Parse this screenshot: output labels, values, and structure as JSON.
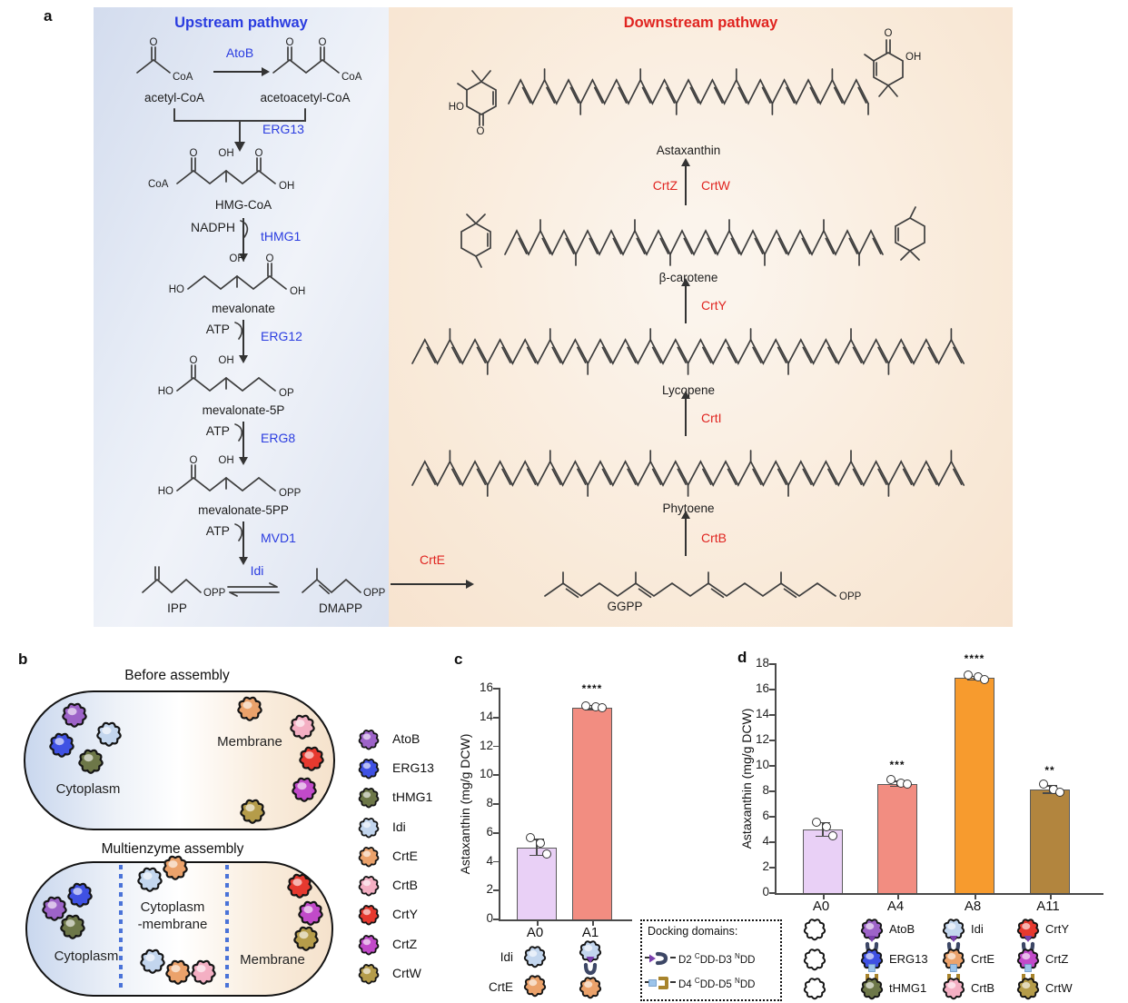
{
  "panels": {
    "a": "a",
    "b": "b",
    "c": "c",
    "d": "d"
  },
  "chem": {
    "o": "O",
    "oh": "OH",
    "ho": "HO",
    "coa": "CoA",
    "op": "OP",
    "opp": "OPP"
  },
  "upstream": {
    "title": "Upstream pathway",
    "steps": {
      "atob": "AtoB",
      "erg13": "ERG13",
      "thmg1": "tHMG1",
      "erg12": "ERG12",
      "erg8": "ERG8",
      "mvd1": "MVD1",
      "idi": "Idi"
    },
    "cofactors": {
      "nadph": "NADPH",
      "atp1": "ATP",
      "atp2": "ATP",
      "atp3": "ATP"
    },
    "mets": {
      "acetyl": "acetyl-CoA",
      "acetoacetyl": "acetoacetyl-CoA",
      "hmg": "HMG-CoA",
      "mev": "mevalonate",
      "mev5p": "mevalonate-5P",
      "mev5pp": "mevalonate-5PP",
      "ipp": "IPP",
      "dmapp": "DMAPP"
    }
  },
  "downstream": {
    "title": "Downstream pathway",
    "steps": {
      "crte": "CrtE",
      "crtb": "CrtB",
      "crti": "CrtI",
      "crty": "CrtY",
      "crtz": "CrtZ",
      "crtw": "CrtW"
    },
    "mets": {
      "ggpp": "GGPP",
      "phytoene": "Phytoene",
      "lycopene": "Lycopene",
      "bcar": "β-carotene",
      "asta": "Astaxanthin"
    }
  },
  "assembly": {
    "before_title": "Before assembly",
    "multi_title": "Multienzyme assembly",
    "cytoplasm": "Cytoplasm",
    "membrane": "Membrane",
    "cyto_mem1": "Cytoplasm",
    "cyto_mem2": "-membrane"
  },
  "enzymes": [
    {
      "name": "AtoB",
      "color": "#9d63c8"
    },
    {
      "name": "ERG13",
      "color": "#3f51e3"
    },
    {
      "name": "tHMG1",
      "color": "#6d7748"
    },
    {
      "name": "Idi",
      "color": "#c3d6ee"
    },
    {
      "name": "CrtE",
      "color": "#eba26b"
    },
    {
      "name": "CrtB",
      "color": "#f4afc3"
    },
    {
      "name": "CrtY",
      "color": "#e6392f"
    },
    {
      "name": "CrtZ",
      "color": "#c14ac9"
    },
    {
      "name": "CrtW",
      "color": "#b59c4a"
    }
  ],
  "docking": {
    "title": "Docking domains:",
    "row1": {
      "pre": "D2 ",
      "sup1": "C",
      "mid": "DD-D3 ",
      "sup2": "N",
      "post": "DD"
    },
    "row2": {
      "pre": "D4 ",
      "sup1": "C",
      "mid": "DD-D5 ",
      "sup2": "N",
      "post": "DD"
    }
  },
  "chart_data": [
    {
      "id": "c",
      "type": "bar",
      "title": "",
      "xlabel": "",
      "ylabel": "Astaxanthin (mg/g DCW)",
      "ylim": [
        0,
        16
      ],
      "ytick_step": 2,
      "grid": false,
      "categories": [
        "A0",
        "A1"
      ],
      "values": [
        5.0,
        14.7
      ],
      "bar_colors": [
        "#e9d0f6",
        "#f28d81"
      ],
      "significance": [
        "",
        "****"
      ],
      "points": [
        [
          5.6,
          5.2,
          4.45
        ],
        [
          14.75,
          14.7,
          14.6
        ]
      ],
      "errors": [
        0.6,
        0.18
      ],
      "icon_rows": [
        "Idi",
        "CrtE"
      ]
    },
    {
      "id": "d",
      "type": "bar",
      "title": "",
      "xlabel": "",
      "ylabel": "Astaxanthin (mg/g DCW)",
      "ylim": [
        0,
        18
      ],
      "ytick_step": 2,
      "grid": false,
      "categories": [
        "A0",
        "A4",
        "A8",
        "A11"
      ],
      "values": [
        5.0,
        8.6,
        16.9,
        8.15
      ],
      "bar_colors": [
        "#e9d0f6",
        "#f28d81",
        "#f79b2e",
        "#b2853e"
      ],
      "significance": [
        "",
        "***",
        "****",
        "**"
      ],
      "points": [
        [
          5.5,
          5.15,
          4.45
        ],
        [
          8.85,
          8.6,
          8.5
        ],
        [
          17.1,
          16.95,
          16.75
        ],
        [
          8.5,
          8.05,
          7.85
        ]
      ],
      "errors": [
        0.6,
        0.25,
        0.2,
        0.35
      ],
      "stacks": [
        [],
        [
          "AtoB",
          "ERG13",
          "tHMG1"
        ],
        [
          "Idi",
          "CrtE",
          "CrtB"
        ],
        [
          "CrtY",
          "CrtZ",
          "CrtW"
        ]
      ]
    }
  ]
}
